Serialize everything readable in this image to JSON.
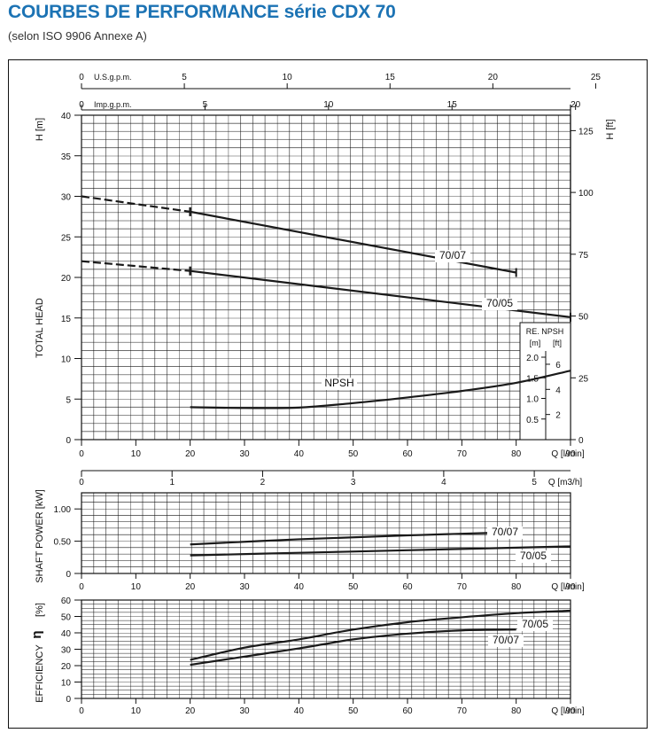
{
  "header": {
    "title": "COURBES DE PERFORMANCE série CDX 70",
    "subtitle": "(selon ISO 9906 Annexe A)"
  },
  "colors": {
    "title": "#1c73b4",
    "grid": "#111111",
    "curve": "#1a1a1a",
    "background": "#ffffff"
  },
  "chart_data": [
    {
      "id": "head",
      "type": "line",
      "ylabel": "TOTAL HEAD",
      "yunit_left": "H [m]",
      "yunit_right": "H [ft]",
      "xlabel": "Q [l/min]",
      "xlim": [
        0,
        90
      ],
      "ylim": [
        0,
        40
      ],
      "xticks": [
        0,
        10,
        20,
        30,
        40,
        50,
        60,
        70,
        80,
        90
      ],
      "yticks": [
        0,
        5,
        10,
        15,
        20,
        25,
        30,
        35,
        40
      ],
      "yticks_ft": [
        0,
        25,
        50,
        75,
        100,
        125
      ],
      "grid": true,
      "top_axes": [
        {
          "label": "U.S.g.p.m.",
          "ticks": [
            0,
            5,
            10,
            15,
            20,
            25
          ],
          "per_lmin": 0.264172
        },
        {
          "label": "Imp.g.p.m.",
          "ticks": [
            0,
            5,
            10,
            15,
            20
          ],
          "per_lmin": 0.219969
        }
      ],
      "npsh_axis": {
        "label": "RE. NPSH",
        "unit_m": "[m]",
        "unit_ft": "[ft]",
        "ticks_m": [
          0.5,
          1.0,
          1.5,
          2.0
        ],
        "ticks_ft": [
          2,
          4,
          6
        ]
      },
      "series": [
        {
          "name": "70/07",
          "dashed_to": 20,
          "x": [
            0,
            20,
            80
          ],
          "y": [
            30,
            28.1,
            20.6
          ]
        },
        {
          "name": "70/05",
          "dashed_to": 20,
          "x": [
            0,
            20,
            90
          ],
          "y": [
            22,
            20.8,
            15.1
          ]
        },
        {
          "name": "NPSH",
          "x": [
            20,
            30,
            40,
            50,
            60,
            70,
            80,
            90
          ],
          "y": [
            4.0,
            3.9,
            3.95,
            4.5,
            5.2,
            6.0,
            7.0,
            8.5
          ]
        }
      ]
    },
    {
      "id": "flow_m3h",
      "type": "axis",
      "xlabel": "Q [m3/h]",
      "ticks": [
        0,
        1,
        2,
        3,
        4,
        5
      ]
    },
    {
      "id": "power",
      "type": "line",
      "ylabel": "SHAFT POWER [kW]",
      "xlabel": "Q [l/min]",
      "xlim": [
        0,
        90
      ],
      "ylim": [
        0,
        1.25
      ],
      "xticks": [
        0,
        10,
        20,
        30,
        40,
        50,
        60,
        70,
        80,
        90
      ],
      "yticks": [
        "0",
        "0.50",
        "1.00"
      ],
      "grid": true,
      "series": [
        {
          "name": "70/07",
          "x": [
            20,
            40,
            60,
            80
          ],
          "y": [
            0.45,
            0.53,
            0.59,
            0.64
          ]
        },
        {
          "name": "70/05",
          "x": [
            20,
            40,
            60,
            90
          ],
          "y": [
            0.28,
            0.32,
            0.36,
            0.42
          ]
        }
      ]
    },
    {
      "id": "efficiency",
      "type": "line",
      "ylabel": "EFFICIENCY",
      "ysymbol": "η",
      "yunit": "[%]",
      "xlabel": "Q [l/min]",
      "xlim": [
        0,
        90
      ],
      "ylim": [
        0,
        60
      ],
      "xticks": [
        0,
        10,
        20,
        30,
        40,
        50,
        60,
        70,
        80,
        90
      ],
      "yticks": [
        0,
        10,
        20,
        30,
        40,
        50,
        60
      ],
      "grid": true,
      "series": [
        {
          "name": "70/05",
          "x": [
            20,
            30,
            40,
            50,
            60,
            70,
            80,
            90
          ],
          "y": [
            23.5,
            31,
            36,
            42,
            46.5,
            49.5,
            52,
            53.5
          ]
        },
        {
          "name": "70/07",
          "x": [
            20,
            30,
            40,
            50,
            60,
            70,
            80
          ],
          "y": [
            20.5,
            25.5,
            30.5,
            36,
            39.5,
            41.5,
            42
          ]
        }
      ]
    }
  ]
}
